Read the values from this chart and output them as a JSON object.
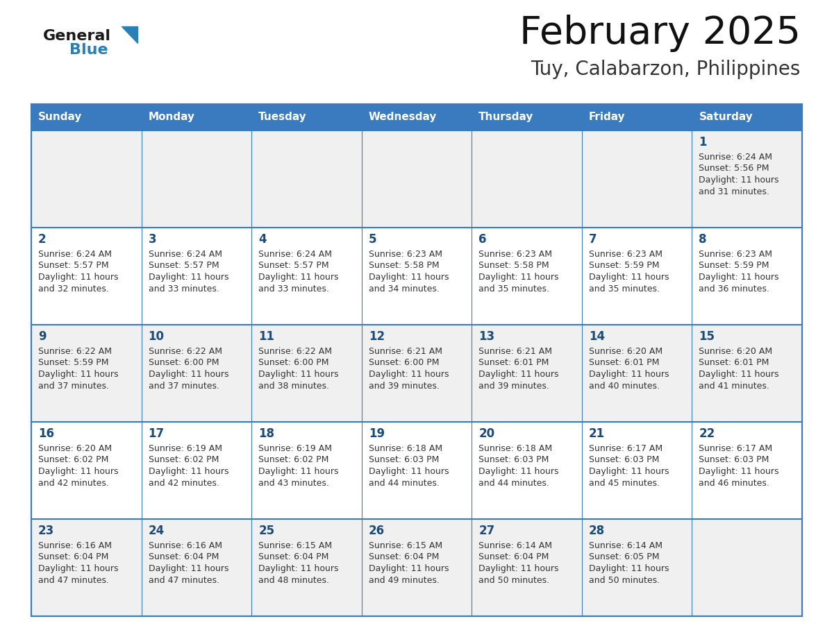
{
  "title": "February 2025",
  "subtitle": "Tuy, Calabarzon, Philippines",
  "days_of_week": [
    "Sunday",
    "Monday",
    "Tuesday",
    "Wednesday",
    "Thursday",
    "Friday",
    "Saturday"
  ],
  "header_bg": "#3a7abf",
  "header_text": "#ffffff",
  "cell_bg_odd": "#f0f0f0",
  "cell_bg_even": "#ffffff",
  "cell_text": "#333333",
  "day_num_color": "#1a4a7a",
  "border_color": "#3a7abf",
  "logo_general_color": "#1a1a1a",
  "logo_blue_color": "#2980b9",
  "calendar_data": [
    [
      null,
      null,
      null,
      null,
      null,
      null,
      {
        "day": 1,
        "sunrise": "6:24 AM",
        "sunset": "5:56 PM",
        "daylight": "11 hours\nand 31 minutes."
      }
    ],
    [
      {
        "day": 2,
        "sunrise": "6:24 AM",
        "sunset": "5:57 PM",
        "daylight": "11 hours\nand 32 minutes."
      },
      {
        "day": 3,
        "sunrise": "6:24 AM",
        "sunset": "5:57 PM",
        "daylight": "11 hours\nand 33 minutes."
      },
      {
        "day": 4,
        "sunrise": "6:24 AM",
        "sunset": "5:57 PM",
        "daylight": "11 hours\nand 33 minutes."
      },
      {
        "day": 5,
        "sunrise": "6:23 AM",
        "sunset": "5:58 PM",
        "daylight": "11 hours\nand 34 minutes."
      },
      {
        "day": 6,
        "sunrise": "6:23 AM",
        "sunset": "5:58 PM",
        "daylight": "11 hours\nand 35 minutes."
      },
      {
        "day": 7,
        "sunrise": "6:23 AM",
        "sunset": "5:59 PM",
        "daylight": "11 hours\nand 35 minutes."
      },
      {
        "day": 8,
        "sunrise": "6:23 AM",
        "sunset": "5:59 PM",
        "daylight": "11 hours\nand 36 minutes."
      }
    ],
    [
      {
        "day": 9,
        "sunrise": "6:22 AM",
        "sunset": "5:59 PM",
        "daylight": "11 hours\nand 37 minutes."
      },
      {
        "day": 10,
        "sunrise": "6:22 AM",
        "sunset": "6:00 PM",
        "daylight": "11 hours\nand 37 minutes."
      },
      {
        "day": 11,
        "sunrise": "6:22 AM",
        "sunset": "6:00 PM",
        "daylight": "11 hours\nand 38 minutes."
      },
      {
        "day": 12,
        "sunrise": "6:21 AM",
        "sunset": "6:00 PM",
        "daylight": "11 hours\nand 39 minutes."
      },
      {
        "day": 13,
        "sunrise": "6:21 AM",
        "sunset": "6:01 PM",
        "daylight": "11 hours\nand 39 minutes."
      },
      {
        "day": 14,
        "sunrise": "6:20 AM",
        "sunset": "6:01 PM",
        "daylight": "11 hours\nand 40 minutes."
      },
      {
        "day": 15,
        "sunrise": "6:20 AM",
        "sunset": "6:01 PM",
        "daylight": "11 hours\nand 41 minutes."
      }
    ],
    [
      {
        "day": 16,
        "sunrise": "6:20 AM",
        "sunset": "6:02 PM",
        "daylight": "11 hours\nand 42 minutes."
      },
      {
        "day": 17,
        "sunrise": "6:19 AM",
        "sunset": "6:02 PM",
        "daylight": "11 hours\nand 42 minutes."
      },
      {
        "day": 18,
        "sunrise": "6:19 AM",
        "sunset": "6:02 PM",
        "daylight": "11 hours\nand 43 minutes."
      },
      {
        "day": 19,
        "sunrise": "6:18 AM",
        "sunset": "6:03 PM",
        "daylight": "11 hours\nand 44 minutes."
      },
      {
        "day": 20,
        "sunrise": "6:18 AM",
        "sunset": "6:03 PM",
        "daylight": "11 hours\nand 44 minutes."
      },
      {
        "day": 21,
        "sunrise": "6:17 AM",
        "sunset": "6:03 PM",
        "daylight": "11 hours\nand 45 minutes."
      },
      {
        "day": 22,
        "sunrise": "6:17 AM",
        "sunset": "6:03 PM",
        "daylight": "11 hours\nand 46 minutes."
      }
    ],
    [
      {
        "day": 23,
        "sunrise": "6:16 AM",
        "sunset": "6:04 PM",
        "daylight": "11 hours\nand 47 minutes."
      },
      {
        "day": 24,
        "sunrise": "6:16 AM",
        "sunset": "6:04 PM",
        "daylight": "11 hours\nand 47 minutes."
      },
      {
        "day": 25,
        "sunrise": "6:15 AM",
        "sunset": "6:04 PM",
        "daylight": "11 hours\nand 48 minutes."
      },
      {
        "day": 26,
        "sunrise": "6:15 AM",
        "sunset": "6:04 PM",
        "daylight": "11 hours\nand 49 minutes."
      },
      {
        "day": 27,
        "sunrise": "6:14 AM",
        "sunset": "6:04 PM",
        "daylight": "11 hours\nand 50 minutes."
      },
      {
        "day": 28,
        "sunrise": "6:14 AM",
        "sunset": "6:05 PM",
        "daylight": "11 hours\nand 50 minutes."
      },
      null
    ]
  ]
}
